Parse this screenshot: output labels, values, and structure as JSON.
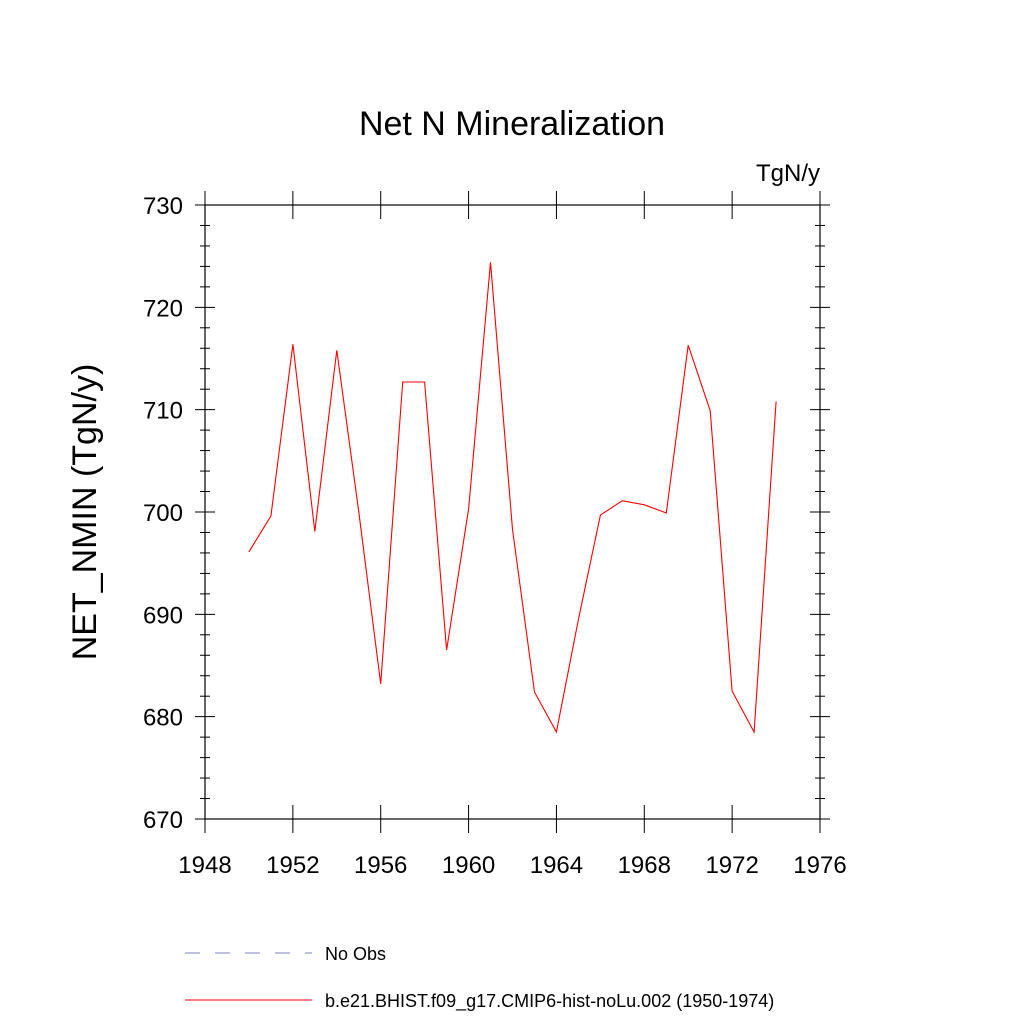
{
  "chart_data": {
    "type": "line",
    "title": "Net N Mineralization",
    "units": "TgN/y",
    "xlabel": "",
    "ylabel": "NET_NMIN  (TgN/y)",
    "xlim": [
      1948,
      1976
    ],
    "ylim": [
      670,
      730
    ],
    "x_ticks": [
      1948,
      1952,
      1956,
      1960,
      1964,
      1968,
      1972,
      1976
    ],
    "y_ticks": [
      670,
      680,
      690,
      700,
      710,
      720,
      730
    ],
    "grid": false,
    "legend_position": "bottom",
    "series": [
      {
        "name": "b.e21.BHIST.f09_g17.CMIP6-hist-noLu.002 (1950-1974)",
        "color": "#ff0000",
        "style": "solid",
        "x": [
          1950,
          1951,
          1952,
          1953,
          1954,
          1955,
          1956,
          1957,
          1958,
          1959,
          1960,
          1961,
          1962,
          1963,
          1964,
          1965,
          1966,
          1967,
          1968,
          1969,
          1970,
          1971,
          1972,
          1973,
          1974
        ],
        "y": [
          696.1,
          699.6,
          716.4,
          698.1,
          715.8,
          700.0,
          683.2,
          712.7,
          712.7,
          686.5,
          700.3,
          724.4,
          698.3,
          682.4,
          678.5,
          689.5,
          699.7,
          701.1,
          700.7,
          699.9,
          716.3,
          709.9,
          682.5,
          678.5,
          710.8
        ]
      }
    ],
    "legend": [
      {
        "label": "No Obs",
        "color": "#8080c0",
        "style": "dashed"
      },
      {
        "label": "b.e21.BHIST.f09_g17.CMIP6-hist-noLu.002 (1950-1974)",
        "color": "#ff0000",
        "style": "solid"
      }
    ]
  }
}
